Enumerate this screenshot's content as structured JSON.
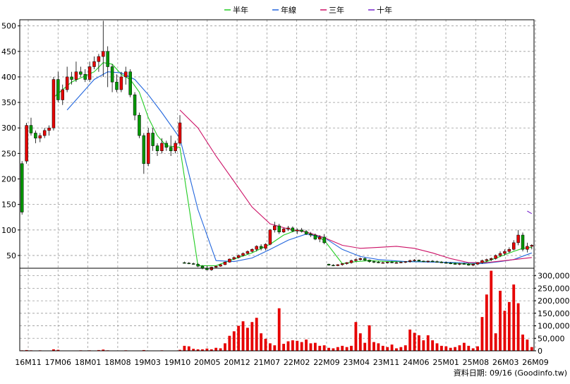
{
  "chart_data": {
    "type": "candlestick",
    "legend": [
      {
        "name": "半年",
        "color": "#22cc22"
      },
      {
        "name": "年線",
        "color": "#2266dd"
      },
      {
        "name": "三年",
        "color": "#cc1166"
      },
      {
        "name": "十年",
        "color": "#7722cc"
      }
    ],
    "x_tick_labels": [
      "16M11",
      "17M06",
      "18M01",
      "18M08",
      "19M03",
      "19M10",
      "20M05",
      "20M12",
      "21M07",
      "22M02",
      "22M09",
      "23M04",
      "23M11",
      "24M06",
      "25M01",
      "25M08",
      "26M03",
      "26M09"
    ],
    "price_axis": {
      "ticks": [
        50,
        100,
        150,
        200,
        250,
        300,
        350,
        400,
        450,
        500
      ],
      "ylim": [
        25,
        512
      ],
      "grid": true
    },
    "volume_axis": {
      "ticks": [
        "0",
        "50,000",
        "100,000",
        "150,000",
        "200,000",
        "250,000",
        "300,000"
      ],
      "ylim": [
        0,
        330000
      ],
      "grid": true
    },
    "candles": [
      [
        1,
        230,
        235,
        130,
        135
      ],
      [
        2,
        235,
        310,
        230,
        305
      ],
      [
        3,
        305,
        320,
        285,
        290
      ],
      [
        4,
        290,
        295,
        270,
        280
      ],
      [
        5,
        280,
        290,
        272,
        285
      ],
      [
        6,
        285,
        300,
        280,
        295
      ],
      [
        7,
        295,
        305,
        285,
        300
      ],
      [
        8,
        300,
        400,
        295,
        395
      ],
      [
        9,
        395,
        410,
        350,
        355
      ],
      [
        10,
        355,
        385,
        345,
        375
      ],
      [
        11,
        375,
        420,
        370,
        400
      ],
      [
        12,
        400,
        410,
        385,
        395
      ],
      [
        13,
        395,
        430,
        390,
        410
      ],
      [
        14,
        410,
        420,
        400,
        405
      ],
      [
        15,
        405,
        415,
        390,
        395
      ],
      [
        16,
        395,
        430,
        390,
        420
      ],
      [
        17,
        420,
        440,
        415,
        430
      ],
      [
        18,
        430,
        445,
        410,
        440
      ],
      [
        19,
        440,
        510,
        400,
        450
      ],
      [
        20,
        450,
        460,
        380,
        420
      ],
      [
        21,
        420,
        425,
        370,
        390
      ],
      [
        22,
        390,
        405,
        370,
        375
      ],
      [
        23,
        375,
        410,
        370,
        400
      ],
      [
        24,
        400,
        420,
        385,
        410
      ],
      [
        25,
        410,
        415,
        360,
        365
      ],
      [
        26,
        365,
        370,
        315,
        325
      ],
      [
        27,
        325,
        330,
        280,
        285
      ],
      [
        28,
        285,
        290,
        210,
        230
      ],
      [
        29,
        230,
        300,
        225,
        290
      ],
      [
        30,
        290,
        300,
        255,
        265
      ],
      [
        31,
        265,
        270,
        245,
        255
      ],
      [
        32,
        255,
        280,
        250,
        270
      ],
      [
        33,
        270,
        275,
        255,
        262
      ],
      [
        34,
        262,
        285,
        245,
        255
      ],
      [
        35,
        255,
        275,
        250,
        270
      ],
      [
        36,
        270,
        325,
        265,
        310
      ],
      [
        37,
        36,
        38,
        34,
        35
      ],
      [
        38,
        35,
        37,
        33,
        34
      ],
      [
        39,
        34,
        36,
        32,
        33
      ],
      [
        40,
        33,
        35,
        27,
        29
      ],
      [
        41,
        29,
        31,
        23,
        25
      ],
      [
        42,
        25,
        30,
        21,
        22
      ],
      [
        43,
        22,
        28,
        20,
        27
      ],
      [
        44,
        27,
        30,
        25,
        29
      ],
      [
        45,
        29,
        33,
        28,
        32
      ],
      [
        46,
        32,
        38,
        31,
        37
      ],
      [
        47,
        37,
        44,
        36,
        43
      ],
      [
        48,
        43,
        48,
        41,
        46
      ],
      [
        49,
        46,
        52,
        44,
        50
      ],
      [
        50,
        50,
        56,
        48,
        54
      ],
      [
        51,
        54,
        60,
        52,
        58
      ],
      [
        52,
        58,
        64,
        56,
        62
      ],
      [
        53,
        62,
        70,
        58,
        68
      ],
      [
        54,
        68,
        72,
        60,
        64
      ],
      [
        55,
        64,
        74,
        60,
        72
      ],
      [
        56,
        72,
        102,
        70,
        100
      ],
      [
        57,
        100,
        116,
        95,
        108
      ],
      [
        58,
        108,
        112,
        92,
        96
      ],
      [
        59,
        96,
        104,
        94,
        102
      ],
      [
        60,
        102,
        108,
        98,
        104
      ],
      [
        61,
        104,
        107,
        96,
        98
      ],
      [
        62,
        98,
        103,
        92,
        100
      ],
      [
        63,
        100,
        104,
        95,
        97
      ],
      [
        64,
        97,
        100,
        90,
        92
      ],
      [
        65,
        92,
        96,
        86,
        90
      ],
      [
        66,
        90,
        93,
        80,
        82
      ],
      [
        67,
        82,
        90,
        76,
        86
      ],
      [
        68,
        86,
        92,
        72,
        75
      ],
      [
        69,
        33,
        34,
        30,
        31
      ],
      [
        70,
        31,
        33,
        29,
        30
      ],
      [
        71,
        30,
        33,
        29,
        32
      ],
      [
        72,
        32,
        35,
        30,
        34
      ],
      [
        73,
        34,
        37,
        32,
        36
      ],
      [
        74,
        36,
        42,
        34,
        40
      ],
      [
        75,
        40,
        44,
        38,
        42
      ],
      [
        76,
        42,
        46,
        40,
        44
      ],
      [
        77,
        44,
        46,
        39,
        41
      ],
      [
        78,
        41,
        42,
        36,
        38
      ],
      [
        79,
        38,
        40,
        35,
        37
      ],
      [
        80,
        37,
        39,
        35,
        36
      ],
      [
        81,
        36,
        38,
        34,
        36
      ],
      [
        82,
        36,
        38,
        34,
        37
      ],
      [
        83,
        37,
        39,
        35,
        36
      ],
      [
        84,
        36,
        38,
        34,
        36
      ],
      [
        85,
        36,
        38,
        35,
        37
      ],
      [
        86,
        37,
        39,
        35,
        38
      ],
      [
        87,
        38,
        42,
        36,
        40
      ],
      [
        88,
        40,
        43,
        38,
        41
      ],
      [
        89,
        41,
        42,
        38,
        39
      ],
      [
        90,
        39,
        40,
        37,
        38
      ],
      [
        91,
        38,
        40,
        36,
        39
      ],
      [
        92,
        39,
        41,
        37,
        38
      ],
      [
        93,
        38,
        40,
        36,
        37
      ],
      [
        94,
        37,
        39,
        35,
        36
      ],
      [
        95,
        36,
        38,
        34,
        35
      ],
      [
        96,
        35,
        37,
        33,
        34
      ],
      [
        97,
        34,
        36,
        32,
        33
      ],
      [
        98,
        33,
        35,
        31,
        34
      ],
      [
        99,
        34,
        36,
        32,
        33
      ],
      [
        100,
        33,
        35,
        30,
        31
      ],
      [
        101,
        31,
        34,
        29,
        33
      ],
      [
        102,
        33,
        37,
        31,
        36
      ],
      [
        103,
        36,
        42,
        34,
        40
      ],
      [
        104,
        40,
        44,
        37,
        42
      ],
      [
        105,
        42,
        46,
        39,
        44
      ],
      [
        106,
        44,
        52,
        42,
        50
      ],
      [
        107,
        50,
        58,
        47,
        54
      ],
      [
        108,
        54,
        62,
        50,
        58
      ],
      [
        109,
        58,
        66,
        55,
        62
      ],
      [
        110,
        62,
        80,
        60,
        75
      ],
      [
        111,
        75,
        100,
        70,
        90
      ],
      [
        112,
        90,
        95,
        58,
        62
      ],
      [
        113,
        62,
        75,
        56,
        68
      ],
      [
        114,
        68,
        72,
        62,
        70
      ]
    ],
    "series": [
      {
        "name": "半年",
        "points": [
          [
            8,
            360
          ],
          [
            12,
            390
          ],
          [
            17,
            410
          ],
          [
            19,
            428
          ],
          [
            21,
            425
          ],
          [
            23,
            405
          ],
          [
            25,
            395
          ],
          [
            27,
            370
          ],
          [
            29,
            320
          ],
          [
            31,
            285
          ],
          [
            33,
            265
          ],
          [
            36,
            262
          ],
          [
            40,
            30
          ],
          [
            44,
            30
          ],
          [
            47,
            40
          ],
          [
            52,
            55
          ],
          [
            56,
            72
          ],
          [
            59,
            90
          ],
          [
            62,
            100
          ],
          [
            64,
            96
          ],
          [
            66,
            88
          ],
          [
            68,
            80
          ],
          [
            72,
            34
          ],
          [
            75,
            38
          ],
          [
            78,
            40
          ],
          [
            82,
            38
          ],
          [
            86,
            38
          ],
          [
            90,
            38
          ],
          [
            94,
            37
          ],
          [
            98,
            34
          ],
          [
            101,
            33
          ],
          [
            104,
            38
          ],
          [
            107,
            48
          ],
          [
            110,
            58
          ],
          [
            112,
            64
          ],
          [
            114,
            66
          ]
        ]
      },
      {
        "name": "年線",
        "points": [
          [
            11,
            335
          ],
          [
            14,
            365
          ],
          [
            17,
            395
          ],
          [
            20,
            410
          ],
          [
            23,
            408
          ],
          [
            26,
            395
          ],
          [
            29,
            365
          ],
          [
            32,
            330
          ],
          [
            36,
            280
          ],
          [
            40,
            140
          ],
          [
            44,
            40
          ],
          [
            48,
            38
          ],
          [
            52,
            45
          ],
          [
            56,
            62
          ],
          [
            60,
            80
          ],
          [
            64,
            92
          ],
          [
            68,
            85
          ],
          [
            72,
            62
          ],
          [
            76,
            48
          ],
          [
            80,
            42
          ],
          [
            86,
            38
          ],
          [
            92,
            37
          ],
          [
            98,
            36
          ],
          [
            103,
            34
          ],
          [
            107,
            38
          ],
          [
            110,
            42
          ],
          [
            114,
            55
          ]
        ]
      },
      {
        "name": "三年",
        "points": [
          [
            36,
            335
          ],
          [
            40,
            300
          ],
          [
            44,
            245
          ],
          [
            48,
            195
          ],
          [
            52,
            145
          ],
          [
            56,
            112
          ],
          [
            60,
            102
          ],
          [
            64,
            96
          ],
          [
            68,
            85
          ],
          [
            72,
            70
          ],
          [
            76,
            64
          ],
          [
            80,
            66
          ],
          [
            84,
            68
          ],
          [
            88,
            64
          ],
          [
            92,
            55
          ],
          [
            96,
            44
          ],
          [
            100,
            36
          ],
          [
            104,
            36
          ],
          [
            108,
            40
          ],
          [
            112,
            44
          ],
          [
            114,
            46
          ]
        ]
      },
      {
        "name": "十年",
        "points": [
          [
            113,
            137
          ],
          [
            114,
            132
          ]
        ]
      }
    ],
    "volumes": [
      [
        1,
        2000
      ],
      [
        2,
        3000
      ],
      [
        3,
        2000
      ],
      [
        5,
        2000
      ],
      [
        8,
        6000
      ],
      [
        9,
        4000
      ],
      [
        14,
        2000
      ],
      [
        16,
        2000
      ],
      [
        18,
        3000
      ],
      [
        19,
        5000
      ],
      [
        20,
        2000
      ],
      [
        24,
        2000
      ],
      [
        28,
        3000
      ],
      [
        32,
        2000
      ],
      [
        36,
        4000
      ],
      [
        37,
        20000
      ],
      [
        38,
        18000
      ],
      [
        39,
        8000
      ],
      [
        40,
        6000
      ],
      [
        41,
        6000
      ],
      [
        42,
        9000
      ],
      [
        43,
        6000
      ],
      [
        44,
        12000
      ],
      [
        45,
        10000
      ],
      [
        46,
        30000
      ],
      [
        47,
        60000
      ],
      [
        48,
        78000
      ],
      [
        49,
        100000
      ],
      [
        50,
        118000
      ],
      [
        51,
        92000
      ],
      [
        52,
        115000
      ],
      [
        53,
        132000
      ],
      [
        54,
        70000
      ],
      [
        55,
        48000
      ],
      [
        56,
        30000
      ],
      [
        57,
        22000
      ],
      [
        58,
        170000
      ],
      [
        59,
        28000
      ],
      [
        60,
        38000
      ],
      [
        61,
        42000
      ],
      [
        62,
        40000
      ],
      [
        63,
        35000
      ],
      [
        64,
        45000
      ],
      [
        65,
        30000
      ],
      [
        66,
        32000
      ],
      [
        67,
        20000
      ],
      [
        68,
        22000
      ],
      [
        69,
        12000
      ],
      [
        70,
        10000
      ],
      [
        71,
        15000
      ],
      [
        72,
        20000
      ],
      [
        73,
        15000
      ],
      [
        74,
        20000
      ],
      [
        75,
        115000
      ],
      [
        76,
        70000
      ],
      [
        77,
        32000
      ],
      [
        78,
        102000
      ],
      [
        79,
        35000
      ],
      [
        80,
        30000
      ],
      [
        81,
        20000
      ],
      [
        82,
        15000
      ],
      [
        83,
        25000
      ],
      [
        84,
        10000
      ],
      [
        85,
        15000
      ],
      [
        86,
        22000
      ],
      [
        87,
        85000
      ],
      [
        88,
        72000
      ],
      [
        89,
        62000
      ],
      [
        90,
        42000
      ],
      [
        91,
        62000
      ],
      [
        92,
        42000
      ],
      [
        93,
        30000
      ],
      [
        94,
        20000
      ],
      [
        95,
        18000
      ],
      [
        96,
        12000
      ],
      [
        97,
        15000
      ],
      [
        98,
        22000
      ],
      [
        99,
        32000
      ],
      [
        100,
        20000
      ],
      [
        101,
        10000
      ],
      [
        102,
        18000
      ],
      [
        103,
        135000
      ],
      [
        104,
        225000
      ],
      [
        105,
        320000
      ],
      [
        106,
        70000
      ],
      [
        107,
        240000
      ],
      [
        108,
        160000
      ],
      [
        109,
        195000
      ],
      [
        110,
        265000
      ],
      [
        111,
        190000
      ],
      [
        112,
        65000
      ],
      [
        113,
        45000
      ],
      [
        114,
        15000
      ]
    ],
    "source_label": "資料日期: 09/16 (Goodinfo.tw)"
  }
}
